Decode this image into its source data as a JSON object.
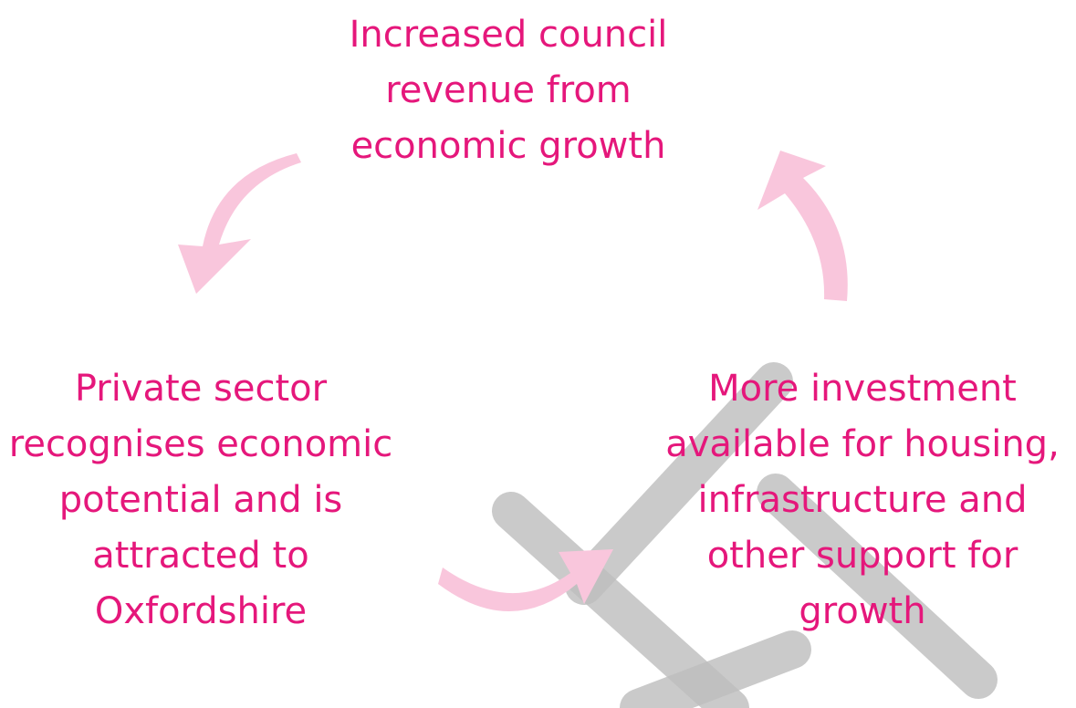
{
  "nodes": [
    {
      "lines": [
        "Increased council",
        "revenue from",
        "economic growth"
      ]
    },
    {
      "lines": [
        "Private sector",
        "recognises economic",
        "potential and is",
        "attracted to",
        "Oxfordshire"
      ]
    },
    {
      "lines": [
        "More investment",
        "available for housing,",
        "infrastructure and",
        "other support for",
        "growth"
      ]
    }
  ]
}
